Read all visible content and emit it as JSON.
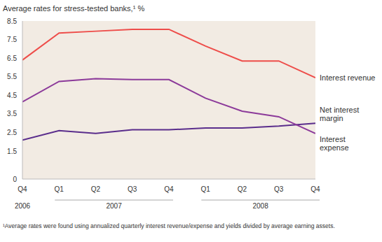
{
  "chart_data": {
    "type": "line",
    "y_label": "Average rates for stress-tested banks,¹ %",
    "footnote": "¹Average rates were found using annualized quarterly interest revenue/expense and yields divided by average earning assets.",
    "categories": [
      "Q4",
      "Q1",
      "Q2",
      "Q3",
      "Q4",
      "Q1",
      "Q2",
      "Q3",
      "Q4"
    ],
    "groups": [
      "2006",
      "2007",
      "2007",
      "2007",
      "2007",
      "2008",
      "2008",
      "2008",
      "2008"
    ],
    "series": [
      {
        "name": "Interest revenue",
        "color": "#ee4d4a",
        "values": [
          6.4,
          7.85,
          7.95,
          8.05,
          8.05,
          7.15,
          6.35,
          6.35,
          5.45
        ]
      },
      {
        "name": "Net interest margin",
        "color": "#5a2d8c",
        "values": [
          2.1,
          2.6,
          2.45,
          2.65,
          2.65,
          2.75,
          2.75,
          2.85,
          3.0
        ]
      },
      {
        "name": "Interest expense",
        "color": "#8c3a9a",
        "values": [
          4.15,
          5.25,
          5.4,
          5.35,
          5.35,
          4.35,
          3.65,
          3.35,
          2.45
        ]
      }
    ],
    "ylim": [
      0,
      8.5
    ],
    "yticks": [
      0,
      1.5,
      2.5,
      3.5,
      4.5,
      5.5,
      6.5,
      7.5,
      8.5
    ],
    "grid": false
  }
}
